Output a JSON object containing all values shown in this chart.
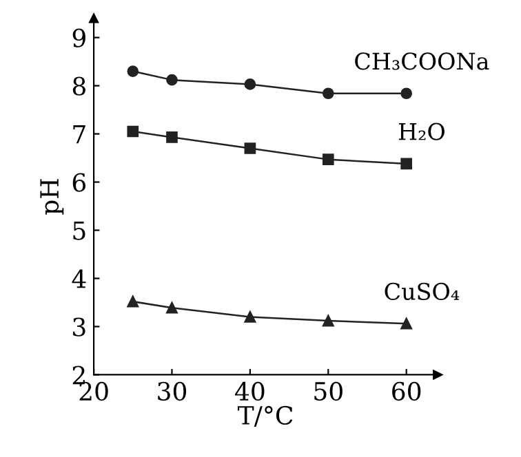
{
  "chart_data": {
    "type": "line",
    "xlabel": "T/°C",
    "ylabel": "pH",
    "x": [
      25,
      30,
      40,
      50,
      60
    ],
    "series": [
      {
        "name": "CH₃COONa",
        "color": "#222222",
        "marker": "circle",
        "values": [
          8.3,
          8.12,
          8.03,
          7.84,
          7.84
        ]
      },
      {
        "name": "H₂O",
        "color": "#222222",
        "marker": "square",
        "values": [
          7.05,
          6.93,
          6.7,
          6.47,
          6.38
        ]
      },
      {
        "name": "CuSO₄",
        "color": "#222222",
        "marker": "triangle",
        "values": [
          3.52,
          3.39,
          3.2,
          3.12,
          3.06
        ]
      }
    ],
    "xlim": [
      20,
      64
    ],
    "ylim": [
      2,
      9.4
    ],
    "xticks": [
      20,
      30,
      40,
      50,
      60
    ],
    "yticks": [
      2,
      3,
      4,
      5,
      6,
      7,
      8,
      9
    ],
    "grid": false,
    "legend": false
  }
}
